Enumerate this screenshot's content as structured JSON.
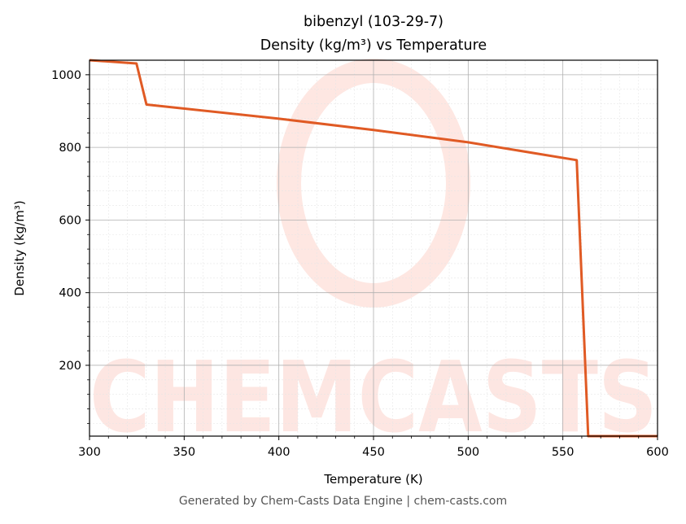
{
  "chart_data": {
    "type": "line",
    "title": "bibenzyl (103-29-7)",
    "subtitle": "Density (kg/m³) vs Temperature",
    "xlabel": "Temperature (K)",
    "ylabel": "Density (kg/m³)",
    "xlim": [
      300,
      600
    ],
    "ylim": [
      5,
      1040
    ],
    "xticks": [
      300,
      350,
      400,
      450,
      500,
      550,
      600
    ],
    "yticks": [
      200,
      400,
      600,
      800,
      1000
    ],
    "grid": true,
    "series": [
      {
        "color": "#e05a24",
        "x": [
          300,
          324.8,
          330.1,
          400,
          450,
          500,
          557.3,
          563.4,
          600
        ],
        "y": [
          1040,
          1031,
          918,
          879,
          848,
          814,
          765,
          5,
          5
        ]
      }
    ]
  },
  "watermark": {
    "text": "CHEMCASTS"
  },
  "footer": "Generated by Chem-Casts Data Engine | chem-casts.com"
}
